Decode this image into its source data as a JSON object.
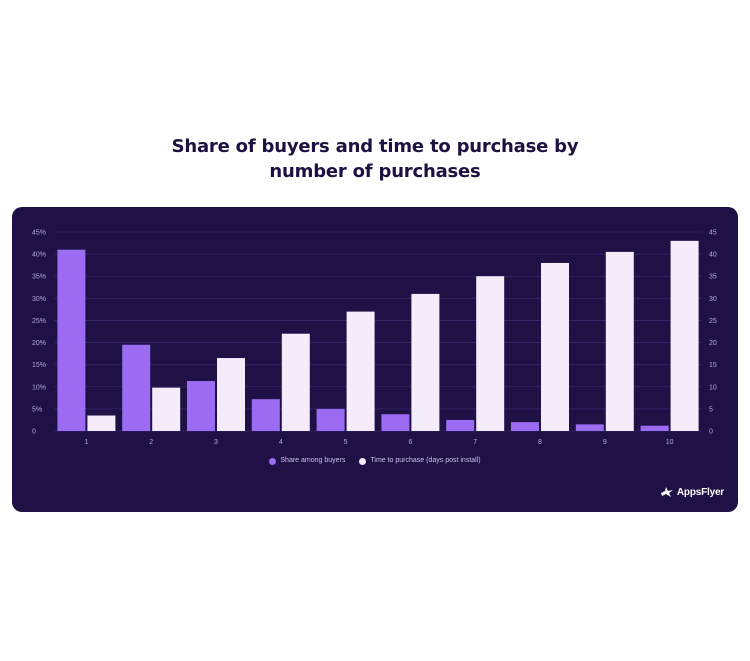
{
  "title_line1": "Share of buyers and time to purchase by",
  "title_line2": "number of purchases",
  "brand_name": "AppsFlyer",
  "colors": {
    "background": "#1f1045",
    "share_bar": "#9b6cf2",
    "time_bar": "#f4ecfb",
    "gridline": "#35276a",
    "tick_text": "#b7abe0"
  },
  "chart_data": {
    "type": "bar",
    "categories": [
      "1",
      "2",
      "3",
      "4",
      "5",
      "6",
      "7",
      "8",
      "9",
      "10"
    ],
    "series": [
      {
        "name": "Share among buyers",
        "axis": "left",
        "values": [
          41,
          19.5,
          11.3,
          7.2,
          5,
          3.8,
          2.5,
          2,
          1.5,
          1.2
        ]
      },
      {
        "name": "Time to purchase (days post install)",
        "axis": "right",
        "values": [
          3.5,
          9.8,
          16.5,
          22,
          27,
          31,
          35,
          38,
          40.5,
          43
        ]
      }
    ],
    "y_left": {
      "ticks": [
        "0",
        "5%",
        "10%",
        "15%",
        "20%",
        "25%",
        "30%",
        "35%",
        "40%",
        "45%"
      ],
      "ylim": [
        0,
        45
      ]
    },
    "y_right": {
      "ticks": [
        "0",
        "5",
        "10",
        "15",
        "20",
        "25",
        "30",
        "35",
        "40",
        "45"
      ],
      "ylim": [
        0,
        45
      ]
    },
    "grid": true,
    "legend_position": "bottom-center"
  }
}
